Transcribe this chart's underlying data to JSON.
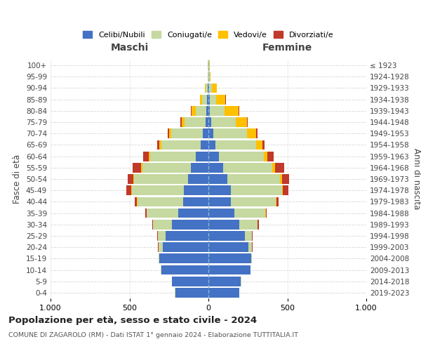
{
  "age_groups": [
    "0-4",
    "5-9",
    "10-14",
    "15-19",
    "20-24",
    "25-29",
    "30-34",
    "35-39",
    "40-44",
    "45-49",
    "50-54",
    "55-59",
    "60-64",
    "65-69",
    "70-74",
    "75-79",
    "80-84",
    "85-89",
    "90-94",
    "95-99",
    "100+"
  ],
  "birth_years": [
    "2019-2023",
    "2014-2018",
    "2009-2013",
    "2004-2008",
    "1999-2003",
    "1994-1998",
    "1989-1993",
    "1984-1988",
    "1979-1983",
    "1974-1978",
    "1969-1973",
    "1964-1968",
    "1959-1963",
    "1954-1958",
    "1949-1953",
    "1944-1948",
    "1939-1943",
    "1934-1938",
    "1929-1933",
    "1924-1928",
    "≤ 1923"
  ],
  "male": {
    "celibi": [
      210,
      230,
      300,
      310,
      290,
      270,
      230,
      190,
      160,
      155,
      130,
      110,
      80,
      50,
      35,
      20,
      12,
      8,
      5,
      2,
      2
    ],
    "coniugati": [
      2,
      2,
      2,
      5,
      25,
      50,
      120,
      200,
      290,
      330,
      340,
      310,
      290,
      250,
      200,
      130,
      70,
      30,
      12,
      3,
      2
    ],
    "vedovi": [
      0,
      0,
      0,
      0,
      2,
      2,
      2,
      2,
      3,
      5,
      5,
      5,
      8,
      10,
      15,
      20,
      25,
      15,
      5,
      1,
      0
    ],
    "divorziati": [
      0,
      0,
      0,
      0,
      2,
      3,
      5,
      8,
      15,
      30,
      35,
      55,
      35,
      15,
      10,
      8,
      5,
      2,
      0,
      0,
      0
    ]
  },
  "female": {
    "nubili": [
      195,
      205,
      265,
      270,
      255,
      230,
      195,
      165,
      140,
      140,
      120,
      95,
      65,
      45,
      30,
      18,
      10,
      8,
      5,
      2,
      2
    ],
    "coniugate": [
      2,
      2,
      2,
      5,
      20,
      45,
      115,
      195,
      285,
      325,
      335,
      310,
      285,
      255,
      215,
      155,
      90,
      40,
      18,
      5,
      3
    ],
    "vedove": [
      0,
      0,
      0,
      0,
      2,
      2,
      3,
      3,
      5,
      8,
      10,
      15,
      25,
      40,
      55,
      70,
      90,
      60,
      30,
      5,
      2
    ],
    "divorziate": [
      0,
      0,
      0,
      0,
      2,
      3,
      5,
      8,
      15,
      35,
      45,
      60,
      40,
      15,
      10,
      8,
      5,
      3,
      2,
      0,
      0
    ]
  },
  "colors": {
    "celibi": "#4472c4",
    "coniugati": "#c5d9a0",
    "vedovi": "#ffc000",
    "divorziati": "#c0392b"
  },
  "title": "Popolazione per età, sesso e stato civile - 2024",
  "subtitle": "COMUNE DI ZAGAROLO (RM) - Dati ISTAT 1° gennaio 2024 - Elaborazione TUTTITALIA.IT",
  "xlabel_left": "Maschi",
  "xlabel_right": "Femmine",
  "ylabel_left": "Fasce di età",
  "ylabel_right": "Anni di nascita",
  "xlim": 1000,
  "background_color": "#ffffff",
  "grid_color": "#cccccc",
  "bar_height": 0.85
}
